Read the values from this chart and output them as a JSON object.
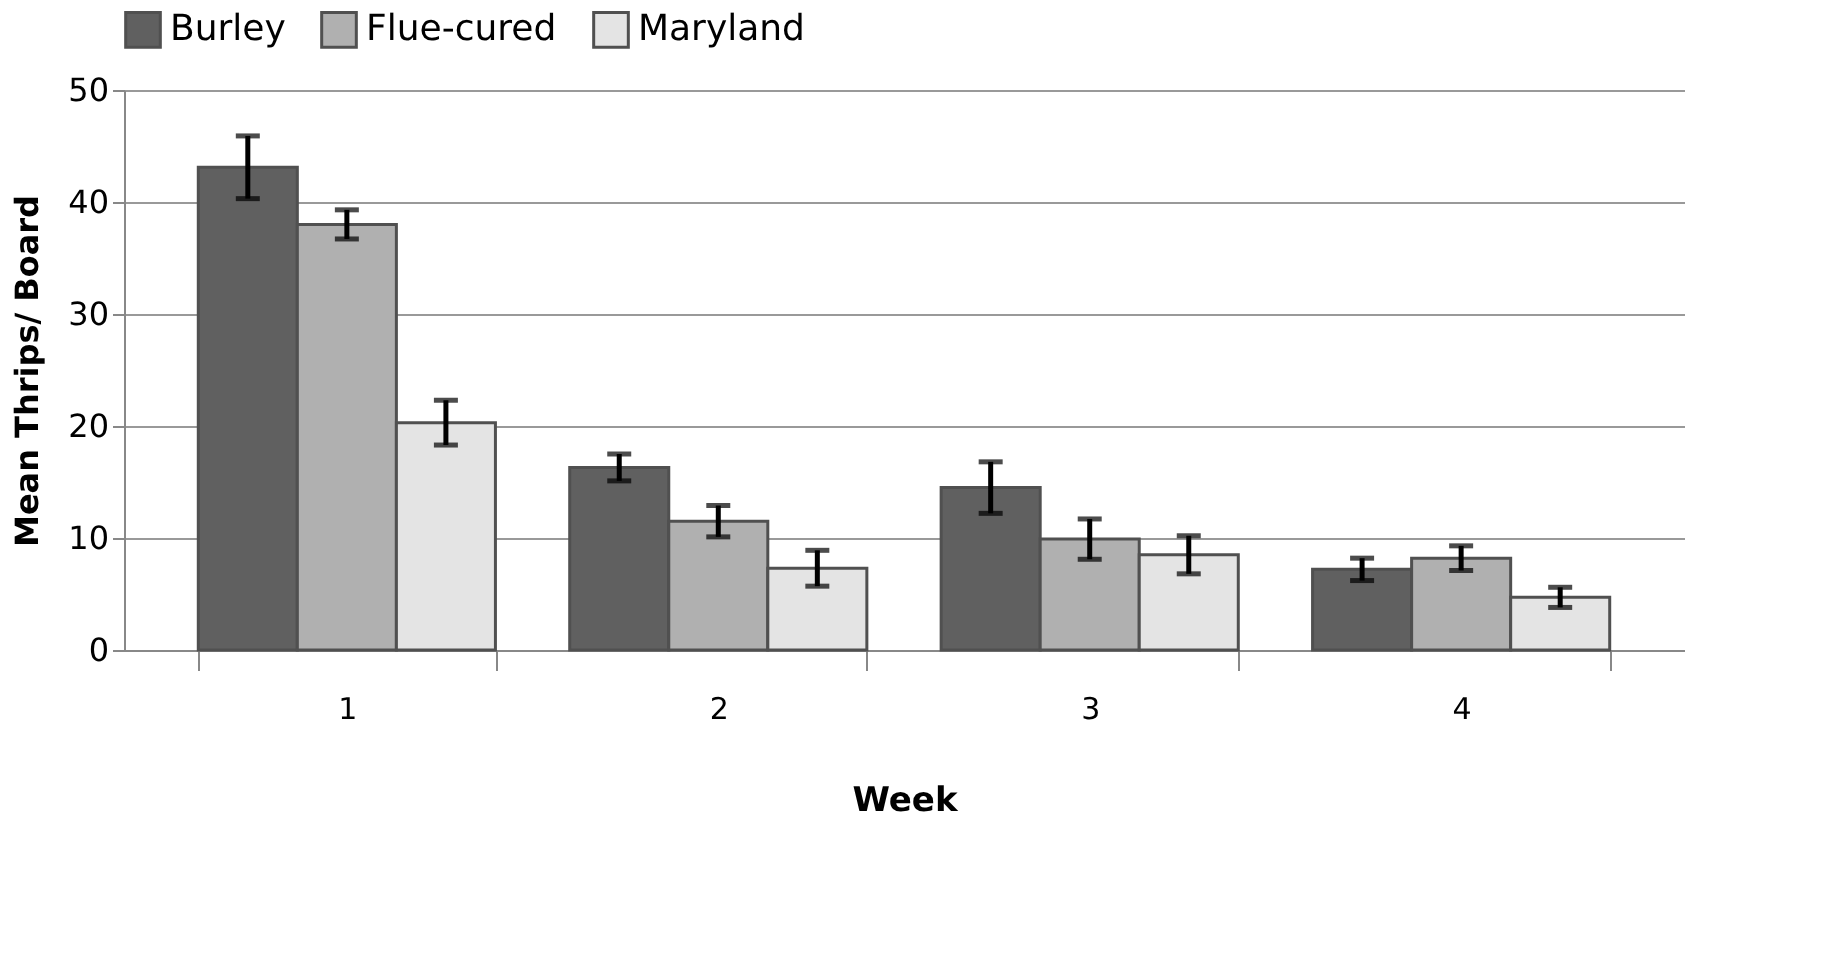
{
  "chart_data": {
    "type": "bar",
    "xlabel": "Week",
    "ylabel": "Mean Thrips/ Board",
    "categories": [
      "1",
      "2",
      "3",
      "4"
    ],
    "series": [
      {
        "name": "Burley",
        "color": "#606060",
        "values": [
          43.1,
          16.3,
          14.5,
          7.2
        ],
        "errors": [
          2.8,
          1.2,
          2.3,
          1.0
        ]
      },
      {
        "name": "Flue-cured",
        "color": "#b0b0b0",
        "values": [
          38.0,
          11.5,
          9.9,
          8.2
        ],
        "errors": [
          1.3,
          1.4,
          1.8,
          1.1
        ]
      },
      {
        "name": "Maryland",
        "color": "#e4e4e4",
        "values": [
          20.3,
          7.3,
          8.5,
          4.7
        ],
        "errors": [
          2.0,
          1.6,
          1.7,
          0.9
        ]
      }
    ],
    "ylim": [
      0,
      50
    ],
    "yticks": [
      0,
      10,
      20,
      30,
      40,
      50
    ],
    "grid": "y",
    "legend": "top"
  }
}
